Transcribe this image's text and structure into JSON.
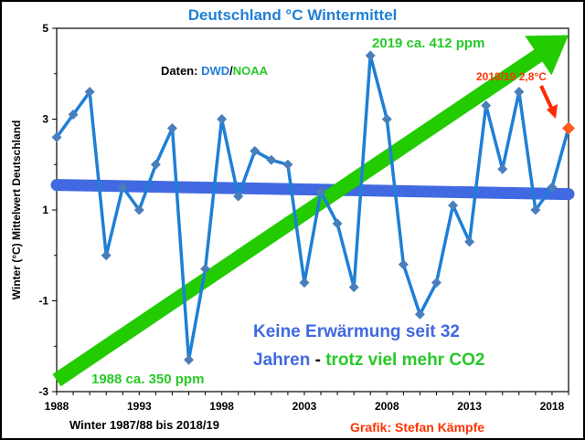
{
  "chart_data": {
    "type": "line",
    "title": "Deutschland °C Wintermittel",
    "ylabel": "Winter (°C) Mittelwert Deutschland",
    "xlabel": "Winter 1987/88 bis 2018/19",
    "ylim": [
      -3,
      5
    ],
    "xlim": [
      1988,
      2019
    ],
    "yticks": [
      "5",
      "3",
      "1",
      "-1",
      "-3"
    ],
    "xticks": [
      "1988",
      "1993",
      "1998",
      "2003",
      "2008",
      "2013",
      "2018"
    ],
    "grid": false,
    "x": [
      1988,
      1989,
      1990,
      1991,
      1992,
      1993,
      1994,
      1995,
      1996,
      1997,
      1998,
      1999,
      2000,
      2001,
      2002,
      2003,
      2004,
      2005,
      2006,
      2007,
      2008,
      2009,
      2010,
      2011,
      2012,
      2013,
      2014,
      2015,
      2016,
      2017,
      2018,
      2019
    ],
    "series": [
      {
        "values": [
          2.6,
          3.1,
          3.6,
          0.0,
          1.5,
          1.0,
          2.0,
          2.8,
          -2.3,
          -0.3,
          3.0,
          1.3,
          2.3,
          2.1,
          2.0,
          -0.6,
          1.4,
          0.7,
          -0.7,
          4.4,
          3.0,
          -0.2,
          -1.3,
          -0.6,
          1.1,
          0.3,
          3.3,
          1.9,
          3.6,
          1.0,
          1.5,
          2.8
        ],
        "color": "#1F7FD6",
        "marker_color": "#4A7EBB",
        "last_point_color": "#FF5A1F"
      }
    ],
    "trend_line": {
      "from": [
        1988,
        1.55
      ],
      "to": [
        2019,
        1.35
      ],
      "color": "#4169E1"
    },
    "co2_arrow": {
      "from": [
        1988,
        -2.75
      ],
      "to": [
        2019,
        4.85
      ],
      "color": "#22CC00"
    },
    "annotations": {
      "daten_prefix": "Daten: ",
      "daten_dwd": "DWD",
      "daten_sep": "/",
      "daten_noaa": "NOAA",
      "ppm_2019": "2019 ca. 412 ppm",
      "ppm_1988": "1988 ca. 350 ppm",
      "last_value": "2018/19 2,8°C",
      "headline_line1": "Keine Erwärmung seit 32",
      "headline_line2_a": "Jahren",
      "headline_line2_b": " - ",
      "headline_line2_c": "trotz viel mehr CO2",
      "credit": "Grafik: Stefan Kämpfe"
    },
    "colors": {
      "dwd": "#1F7FD6",
      "noaa": "#27C927",
      "ppm": "#27C927",
      "headline_blue": "#4169E1",
      "headline_green": "#27C927",
      "credit": "#FF3300"
    }
  }
}
